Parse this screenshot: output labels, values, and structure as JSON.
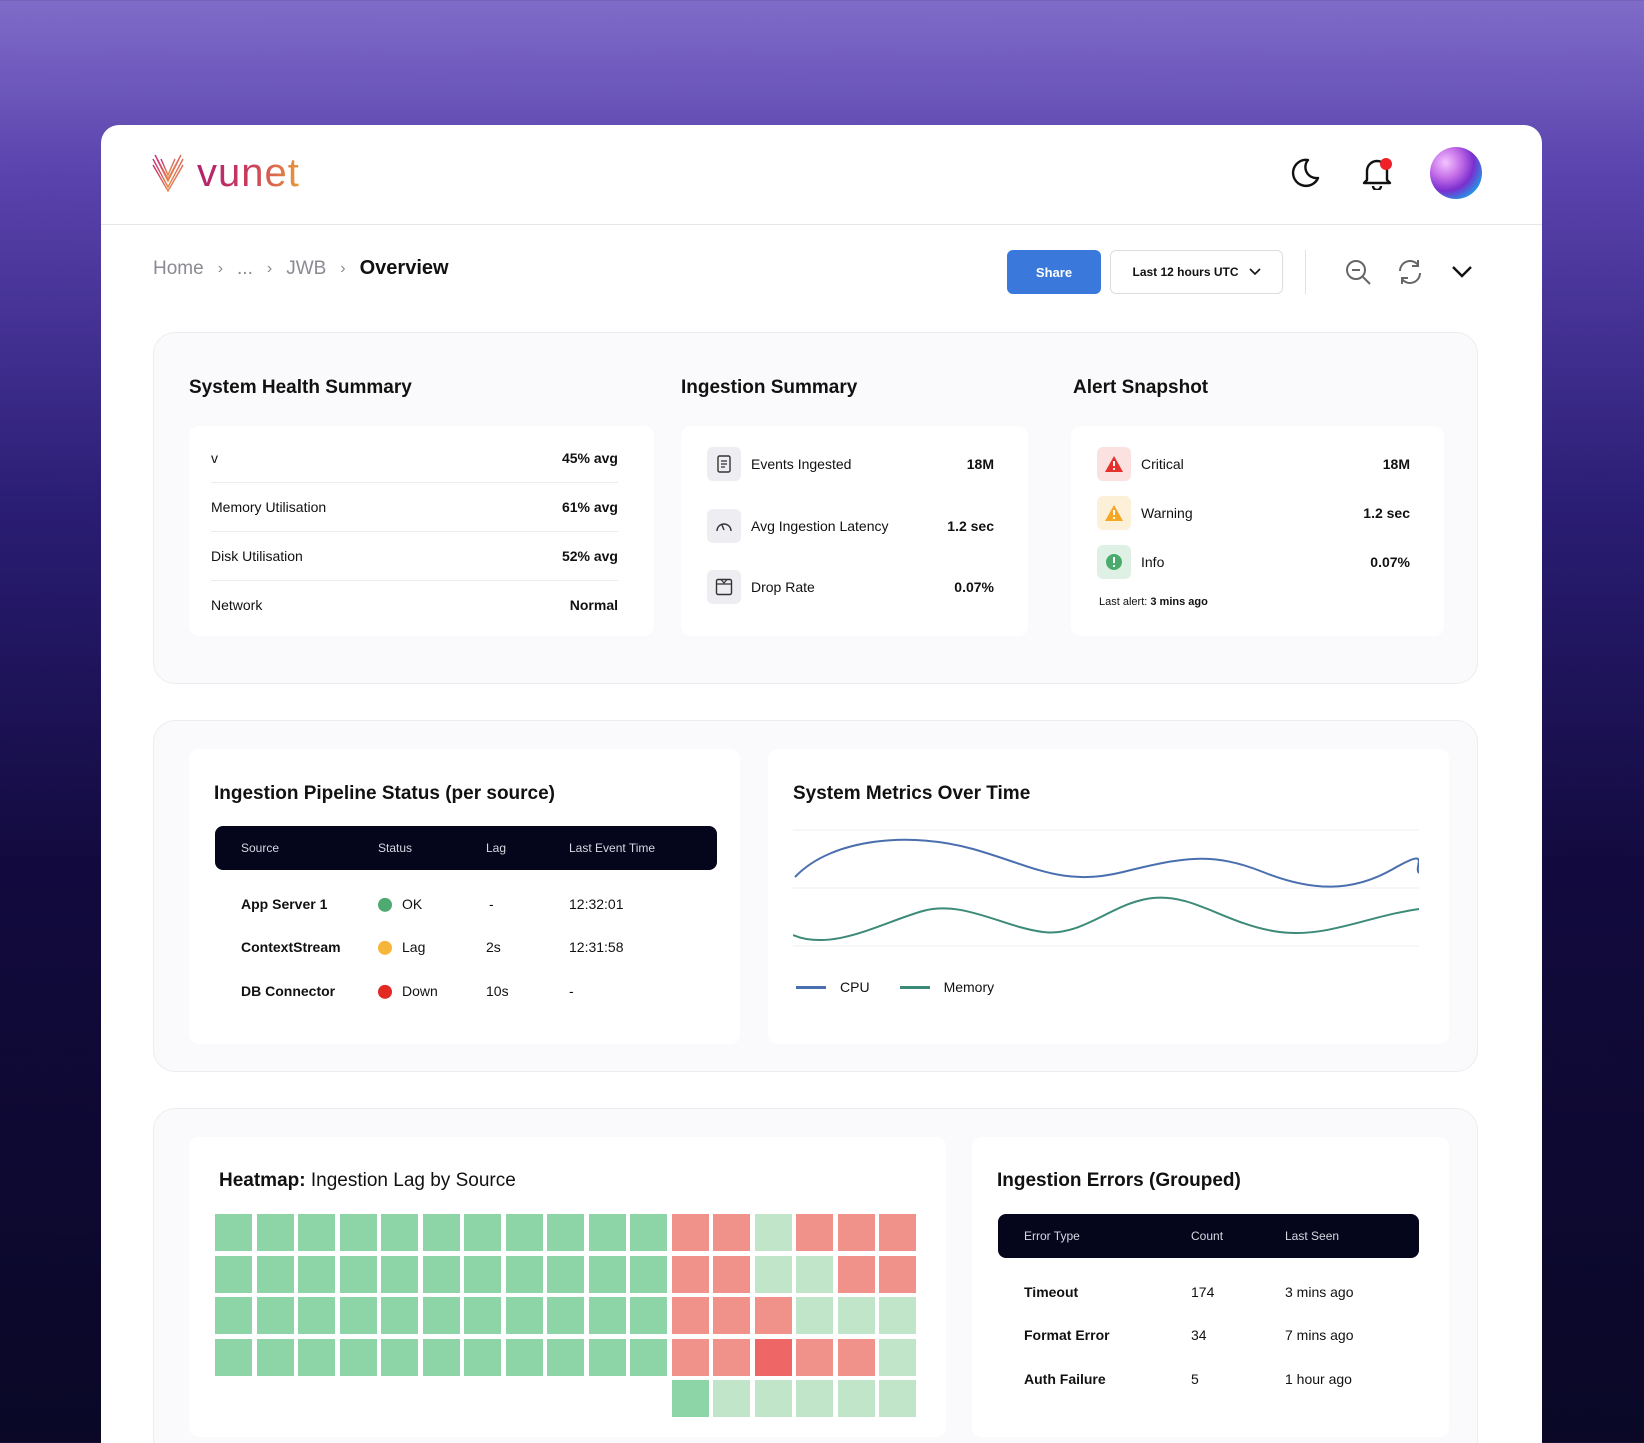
{
  "brand": {
    "name": "vunet"
  },
  "breadcrumb": {
    "home": "Home",
    "ellipsis": "...",
    "parent": "JWB",
    "current": "Overview"
  },
  "toolbar": {
    "share_label": "Share",
    "time_range": "Last 12 hours UTC"
  },
  "health": {
    "title": "System Health Summary",
    "rows": [
      {
        "label": "v",
        "value": "45% avg"
      },
      {
        "label": "Memory Utilisation",
        "value": "61% avg"
      },
      {
        "label": "Disk Utilisation",
        "value": "52% avg"
      },
      {
        "label": "Network",
        "value": "Normal"
      }
    ]
  },
  "ingestion": {
    "title": "Ingestion Summary",
    "rows": [
      {
        "label": "Events Ingested",
        "value": "18M",
        "icon": "document-icon"
      },
      {
        "label": "Avg Ingestion Latency",
        "value": "1.2 sec",
        "icon": "gauge-icon"
      },
      {
        "label": "Drop Rate",
        "value": "0.07%",
        "icon": "drop-box-icon"
      }
    ]
  },
  "alerts": {
    "title": "Alert Snapshot",
    "rows": [
      {
        "label": "Critical",
        "value": "18M",
        "color": "#e5302c",
        "bg": "#fbe1e0"
      },
      {
        "label": "Warning",
        "value": "1.2 sec",
        "color": "#f5a623",
        "bg": "#fdf0d8"
      },
      {
        "label": "Info",
        "value": "0.07%",
        "color": "#4bab6e",
        "bg": "#dff1e5"
      }
    ],
    "last_alert_label": "Last alert:",
    "last_alert_value": "3 mins ago"
  },
  "pipeline": {
    "title": "Ingestion Pipeline Status (per source)",
    "columns": [
      "Source",
      "Status",
      "Lag",
      "Last Event Time"
    ],
    "rows": [
      {
        "source": "App Server 1",
        "status": "OK",
        "status_color": "#4faa72",
        "lag": "-",
        "last": "12:32:01"
      },
      {
        "source": "ContextStream",
        "status": "Lag",
        "status_color": "#f7b53a",
        "lag": "2s",
        "last": "12:31:58"
      },
      {
        "source": "DB Connector",
        "status": "Down",
        "status_color": "#e02a22",
        "lag": "10s",
        "last": "-"
      }
    ]
  },
  "metrics": {
    "title": "System Metrics Over Time",
    "legend": [
      {
        "name": "CPU",
        "color": "#4a6fae"
      },
      {
        "name": "Memory",
        "color": "#3c8a78"
      }
    ]
  },
  "heatmap": {
    "title_bold": "Heatmap:",
    "title_rest": "Ingestion Lag by Source",
    "colors": {
      "g": "#8dd4a7",
      "lg": "#c0e5c8",
      "r": "#f1928a",
      "dr": "#ee6666"
    },
    "rows": [
      [
        "g",
        "g",
        "g",
        "g",
        "g",
        "g",
        "g",
        "g",
        "g",
        "g",
        "g",
        "r",
        "r",
        "lg",
        "r",
        "r",
        "r"
      ],
      [
        "g",
        "g",
        "g",
        "g",
        "g",
        "g",
        "g",
        "g",
        "g",
        "g",
        "g",
        "r",
        "r",
        "lg",
        "lg",
        "r",
        "r"
      ],
      [
        "g",
        "g",
        "g",
        "g",
        "g",
        "g",
        "g",
        "g",
        "g",
        "g",
        "g",
        "r",
        "r",
        "r",
        "lg",
        "lg",
        "lg"
      ],
      [
        "g",
        "g",
        "g",
        "g",
        "g",
        "g",
        "g",
        "g",
        "g",
        "g",
        "g",
        "r",
        "r",
        "dr",
        "r",
        "r",
        "lg"
      ],
      [
        "",
        "",
        "",
        "",
        "",
        "",
        "",
        "",
        "",
        "",
        "",
        "g",
        "lg",
        "lg",
        "lg",
        "lg",
        "lg"
      ]
    ]
  },
  "errors": {
    "title": "Ingestion Errors (Grouped)",
    "columns": [
      "Error Type",
      "Count",
      "Last Seen"
    ],
    "rows": [
      {
        "type": "Timeout",
        "count": "174",
        "last": "3 mins ago"
      },
      {
        "type": "Format Error",
        "count": "34",
        "last": "7 mins ago"
      },
      {
        "type": "Auth Failure",
        "count": "5",
        "last": "1 hour ago"
      }
    ]
  }
}
